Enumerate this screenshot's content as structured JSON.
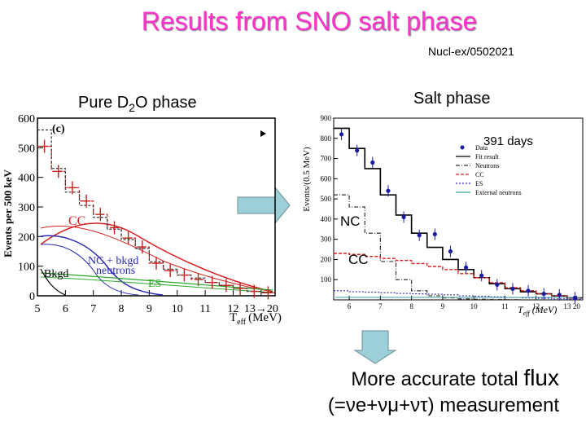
{
  "slide": {
    "title": "Results from SNO salt phase",
    "reference": "Nucl-ex/0502021",
    "left_label_pre": "Pure D",
    "left_label_sub": "2",
    "left_label_post": "O phase",
    "right_label": "Salt phase",
    "conclusion_line1": "More accurate total ",
    "conclusion_flux": "flux",
    "conclusion_line2": "(=νe+νμ+ντ) measurement"
  },
  "colors": {
    "title": "#ff33cc",
    "arrow": "#9ccfd8",
    "data": "#1a1aa0",
    "cc": "#d42020",
    "nc": "#2a2ab0",
    "es": "#2aaa2a"
  },
  "chart_data": [
    {
      "type": "line",
      "panel_label": "(c)",
      "ylabel": "Events per 500 keV",
      "xlabel": "T",
      "xlabel_sub": "eff",
      "xlabel_unit": "(MeV)",
      "x_ticks": [
        "5",
        "6",
        "7",
        "8",
        "9",
        "10",
        "11",
        "12",
        "13→20"
      ],
      "y_ticks": [
        "0",
        "100",
        "200",
        "300",
        "400",
        "500",
        "600"
      ],
      "xlim": [
        5,
        13.5
      ],
      "ylim": [
        0,
        600
      ],
      "annotations": [
        "CC",
        "NC + bkgd",
        "neutrons",
        "Bkgd",
        "ES"
      ],
      "series": [
        {
          "x": [
            5.25,
            5.75,
            6.25,
            6.75,
            7.25,
            7.75,
            8.25,
            8.75,
            9.25,
            9.75,
            10.25,
            10.75,
            11.25,
            11.75,
            12.25,
            12.75,
            13.25
          ],
          "y": [
            505,
            420,
            365,
            320,
            275,
            230,
            195,
            165,
            110,
            85,
            70,
            55,
            45,
            35,
            25,
            15,
            10
          ]
        },
        {
          "x": [
            5.25,
            5.75,
            6.25,
            6.75,
            7.25,
            7.75,
            8.25,
            8.75,
            9.25,
            9.75,
            10.25,
            10.75,
            11.25,
            11.75,
            12.25,
            12.75,
            13.25
          ],
          "y": [
            560,
            430,
            350,
            305,
            265,
            225,
            190,
            160,
            115,
            90,
            70,
            60,
            45,
            35,
            25,
            15,
            12
          ]
        }
      ]
    },
    {
      "type": "line",
      "ylabel": "Events/(0.5 MeV)",
      "xlabel": "T",
      "xlabel_sub": "eff",
      "xlabel_unit": "(MeV)",
      "days": "391 days",
      "x_ticks": [
        "6",
        "7",
        "8",
        "9",
        "10",
        "11",
        "12",
        "13",
        "20"
      ],
      "y_ticks": [
        "100",
        "200",
        "300",
        "400",
        "500",
        "600",
        "700",
        "800",
        "900"
      ],
      "xlim": [
        5.5,
        13.5
      ],
      "ylim": [
        0,
        900
      ],
      "legend": [
        "Data",
        "Fit result",
        "Neutrons",
        "CC",
        "ES",
        "External neutrons"
      ],
      "legend_position": "top-right",
      "annotations": [
        "NC",
        "CC"
      ],
      "series": [
        {
          "name": "Data",
          "x": [
            5.75,
            6.25,
            6.75,
            7.25,
            7.75,
            8.25,
            8.75,
            9.25,
            9.75,
            10.25,
            10.75,
            11.25,
            11.75,
            12.25,
            12.75,
            13.25
          ],
          "y": [
            820,
            740,
            680,
            540,
            410,
            320,
            325,
            240,
            160,
            120,
            75,
            55,
            45,
            30,
            25,
            10
          ]
        },
        {
          "name": "Fit result",
          "x": [
            5.75,
            6.25,
            6.75,
            7.25,
            7.75,
            8.25,
            8.75,
            9.25,
            9.75,
            10.25,
            10.75,
            11.25,
            11.75,
            12.25,
            12.75,
            13.25
          ],
          "y": [
            850,
            750,
            650,
            520,
            420,
            330,
            260,
            200,
            150,
            110,
            80,
            55,
            40,
            30,
            20,
            10
          ]
        },
        {
          "name": "Neutrons",
          "x": [
            5.75,
            6.25,
            6.75,
            7.25,
            7.75,
            8.25,
            8.75,
            9.25,
            9.75,
            10.25,
            10.75,
            11.25,
            11.75,
            12.25,
            12.75,
            13.25
          ],
          "y": [
            520,
            460,
            330,
            190,
            100,
            45,
            20,
            10,
            5,
            3,
            2,
            1,
            0,
            0,
            0,
            0
          ]
        },
        {
          "name": "CC",
          "x": [
            5.75,
            6.25,
            6.75,
            7.25,
            7.75,
            8.25,
            8.75,
            9.25,
            9.75,
            10.25,
            10.75,
            11.25,
            11.75,
            12.25,
            12.75,
            13.25
          ],
          "y": [
            230,
            225,
            215,
            205,
            195,
            180,
            165,
            150,
            130,
            110,
            85,
            60,
            45,
            30,
            20,
            10
          ]
        },
        {
          "name": "ES",
          "x": [
            5.75,
            6.25,
            6.75,
            7.25,
            7.75,
            8.25,
            8.75,
            9.25,
            9.75,
            10.25,
            10.75,
            11.25,
            11.75,
            12.25,
            12.75,
            13.25
          ],
          "y": [
            45,
            40,
            38,
            35,
            32,
            30,
            28,
            25,
            20,
            18,
            15,
            12,
            10,
            8,
            5,
            3
          ]
        }
      ]
    }
  ]
}
